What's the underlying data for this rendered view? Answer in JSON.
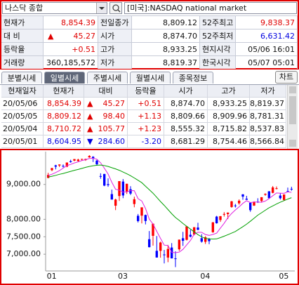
{
  "header": {
    "symbol": "나스닥 종합",
    "market": "[미국]:NASDAQ national market"
  },
  "quote": [
    [
      {
        "label": "현재가",
        "value": "8,854.39",
        "color": "#e00000"
      },
      {
        "label": "전일종가",
        "value": "8,809.12"
      },
      {
        "label": "52주최고",
        "value": "9,838.37",
        "color": "#e00000"
      }
    ],
    [
      {
        "label": "대 비",
        "arrow": "▲",
        "value": "45.27",
        "color": "#e00000"
      },
      {
        "label": "시가",
        "value": "8,874.70"
      },
      {
        "label": "52주최저",
        "value": "6,631.42",
        "color": "#0000e0"
      }
    ],
    [
      {
        "label": "등락율",
        "value": "+0.51",
        "color": "#e00000"
      },
      {
        "label": "고가",
        "value": "8,933.25"
      },
      {
        "label": "현지시각",
        "value": "05/06 16:01"
      }
    ],
    [
      {
        "label": "거래량",
        "value": "360,185,572"
      },
      {
        "label": "저가",
        "value": "8,819.37"
      },
      {
        "label": "한국시각",
        "value": "05/07 05:01"
      }
    ]
  ],
  "tabs": [
    "분별시세",
    "일별시세",
    "주별시세",
    "월별시세",
    "종목정보"
  ],
  "active_tab": 1,
  "chart_button": "차트",
  "table": {
    "columns": [
      "현재일자",
      "현재가",
      "대비",
      "등락율",
      "시가",
      "고가",
      "저가"
    ],
    "rows": [
      {
        "cells": [
          "20/05/06",
          "8,854.39",
          "▲",
          "45.27",
          "+0.51",
          "8,874.70",
          "8,933.25",
          "8,819.37"
        ],
        "color": "#e00000"
      },
      {
        "cells": [
          "20/05/05",
          "8,809.12",
          "▲",
          "98.40",
          "+1.13",
          "8,809.66",
          "8,909.96",
          "8,781.31"
        ],
        "color": "#e00000"
      },
      {
        "cells": [
          "20/05/04",
          "8,710.72",
          "▲",
          "105.77",
          "+1.23",
          "8,555.32",
          "8,715.82",
          "8,537.83"
        ],
        "color": "#e00000"
      },
      {
        "cells": [
          "20/05/01",
          "8,604.95",
          "▼",
          "284.60",
          "-3.20",
          "8,681.29",
          "8,754.46",
          "8,566.84"
        ],
        "color": "#0000e0"
      }
    ]
  },
  "chart_data": {
    "type": "candlestick",
    "categories": [
      "01",
      null,
      null,
      null,
      null,
      null,
      null,
      null,
      null,
      null,
      null,
      null,
      null,
      null,
      null,
      null,
      null,
      null,
      null,
      "03",
      null,
      null,
      null,
      null,
      null,
      null,
      null,
      null,
      null,
      null,
      null,
      null,
      null,
      null,
      null,
      null,
      null,
      null,
      null,
      null,
      null,
      "04",
      null,
      null,
      null,
      null,
      null,
      null,
      null,
      null,
      null,
      null,
      null,
      null,
      null,
      null,
      null,
      null,
      null,
      null,
      null,
      null,
      "05",
      null,
      null,
      null
    ],
    "open": [
      9187,
      9409,
      9547,
      9542,
      9533,
      9510,
      9665,
      9682,
      9668,
      9722,
      9700,
      9776,
      9792,
      9683,
      9240,
      9300,
      9008,
      8723,
      8390,
      8668,
      9082,
      8799,
      8862,
      8438,
      8101,
      8105,
      8124,
      7430,
      7527,
      7097,
      7096,
      6992,
      6904,
      7192,
      6880,
      7141,
      7458,
      7412,
      7557,
      7564,
      7765,
      7459,
      7355,
      7434,
      7631,
      8078,
      7980,
      8142,
      8151,
      8352,
      8396,
      8459,
      8716,
      8592,
      8474,
      8394,
      8506,
      8526,
      8704,
      8803,
      8758,
      8873,
      8681.29,
      8555.32,
      8809.66,
      8874.7
    ],
    "high": [
      9332,
      9478,
      9562,
      9574,
      9572,
      9629,
      9707,
      9729,
      9736,
      9734,
      9737,
      9838,
      9808,
      9706,
      9319,
      9301,
      9172,
      8852,
      8590,
      9095,
      9154,
      9019,
      8950,
      8648,
      8153,
      8344,
      8136,
      7664,
      7875,
      7521,
      7360,
      7123,
      7267,
      7318,
      7082,
      7418,
      7640,
      7798,
      7696,
      7774,
      7900,
      7574,
      7517,
      7462,
      7923,
      8099,
      8091,
      8205,
      8195,
      8528,
      8440,
      8571,
      8720,
      8673,
      8494,
      8517,
      8604,
      8635,
      8746,
      8809,
      8955,
      8941,
      8754.46,
      8715.82,
      8909.96,
      8933.25
    ],
    "low": [
      9177,
      9380,
      9431,
      9498,
      9488,
      9495,
      9623,
      9665,
      9661,
      9678,
      9677,
      9765,
      9643,
      9540,
      9163,
      8951,
      8932,
      8565,
      8264,
      8527,
      8606,
      8727,
      8697,
      8345,
      7909,
      7882,
      7854,
      7195,
      7246,
      6904,
      6900,
      6735,
      6771,
      6879,
      6631,
      7095,
      7238,
      7395,
      7482,
      7540,
      7686,
      7332,
      7293,
      7288,
      7613,
      7876,
      7925,
      8079,
      8008,
      8332,
      8338,
      8420,
      8559,
      8556,
      8216,
      8384,
      8469,
      8480,
      8676,
      8582,
      8746,
      8858,
      8566.84,
      8537.83,
      8781.31,
      8819.37
    ],
    "close": [
      9273,
      9467,
      9509,
      9572,
      9521,
      9628,
      9639,
      9726,
      9712,
      9731,
      9732,
      9817,
      9751,
      9577,
      9221,
      8966,
      8980,
      8567,
      8567,
      9095,
      8684,
      9019,
      8738,
      8576,
      7950,
      8344,
      7953,
      7201,
      7875,
      6905,
      7335,
      6990,
      7151,
      6880,
      6861,
      7418,
      7384,
      7798,
      7502,
      7774,
      7700,
      7360,
      7487,
      7374,
      7913,
      7887,
      8091,
      8153,
      8193,
      8516,
      8394,
      8533,
      8650,
      8561,
      8263,
      8495,
      8495,
      8634,
      8730,
      8607,
      8915,
      8890,
      8604.95,
      8710.72,
      8809.12,
      8854.39
    ],
    "up_color": "#ff0000",
    "down_color": "#0000ff",
    "lines": [
      {
        "color": "#e020e0",
        "values": [
          9254,
          9293,
          9340,
          9394,
          9468,
          9539,
          9574,
          9617,
          9645,
          9687,
          9708,
          9744,
          9749,
          9722,
          9620,
          9466,
          9299,
          9062,
          8860,
          8835,
          8779,
          8786,
          8821,
          8822,
          8593,
          8525,
          8312,
          8005,
          7865,
          7656,
          7454,
          7261,
          7251,
          7052,
          7043,
          7060,
          7139,
          7268,
          7393,
          7575,
          7632,
          7627,
          7565,
          7539,
          7567,
          7604,
          7750,
          7884,
          8047,
          8168,
          8269,
          8358,
          8457,
          8531,
          8480,
          8500,
          8493,
          8490,
          8523,
          8592,
          8676,
          8755,
          8749,
          8746,
          8786,
          8774
        ]
      },
      {
        "color": "#00a000",
        "values": [
          9210,
          9235,
          9260,
          9290,
          9315,
          9345,
          9375,
          9405,
          9430,
          9460,
          9490,
          9515,
          9535,
          9550,
          9555,
          9540,
          9515,
          9480,
          9445,
          9405,
          9355,
          9305,
          9250,
          9185,
          9120,
          9050,
          8950,
          8850,
          8750,
          8630,
          8510,
          8400,
          8280,
          8160,
          8050,
          7970,
          7880,
          7800,
          7720,
          7640,
          7560,
          7500,
          7450,
          7440,
          7435,
          7440,
          7475,
          7515,
          7560,
          7605,
          7650,
          7720,
          7790,
          7860,
          7945,
          8030,
          8120,
          8190,
          8260,
          8330,
          8385,
          8440,
          8490,
          8535,
          8580,
          8620
        ]
      }
    ],
    "ylim": [
      6560,
      9900
    ],
    "yticks": [
      {
        "value": 9000,
        "label": "9,000.00"
      },
      {
        "value": 8000,
        "label": "8,000.00"
      },
      {
        "value": 7500,
        "label": "7,500.00"
      },
      {
        "value": 7000,
        "label": "7,000.00"
      }
    ]
  }
}
